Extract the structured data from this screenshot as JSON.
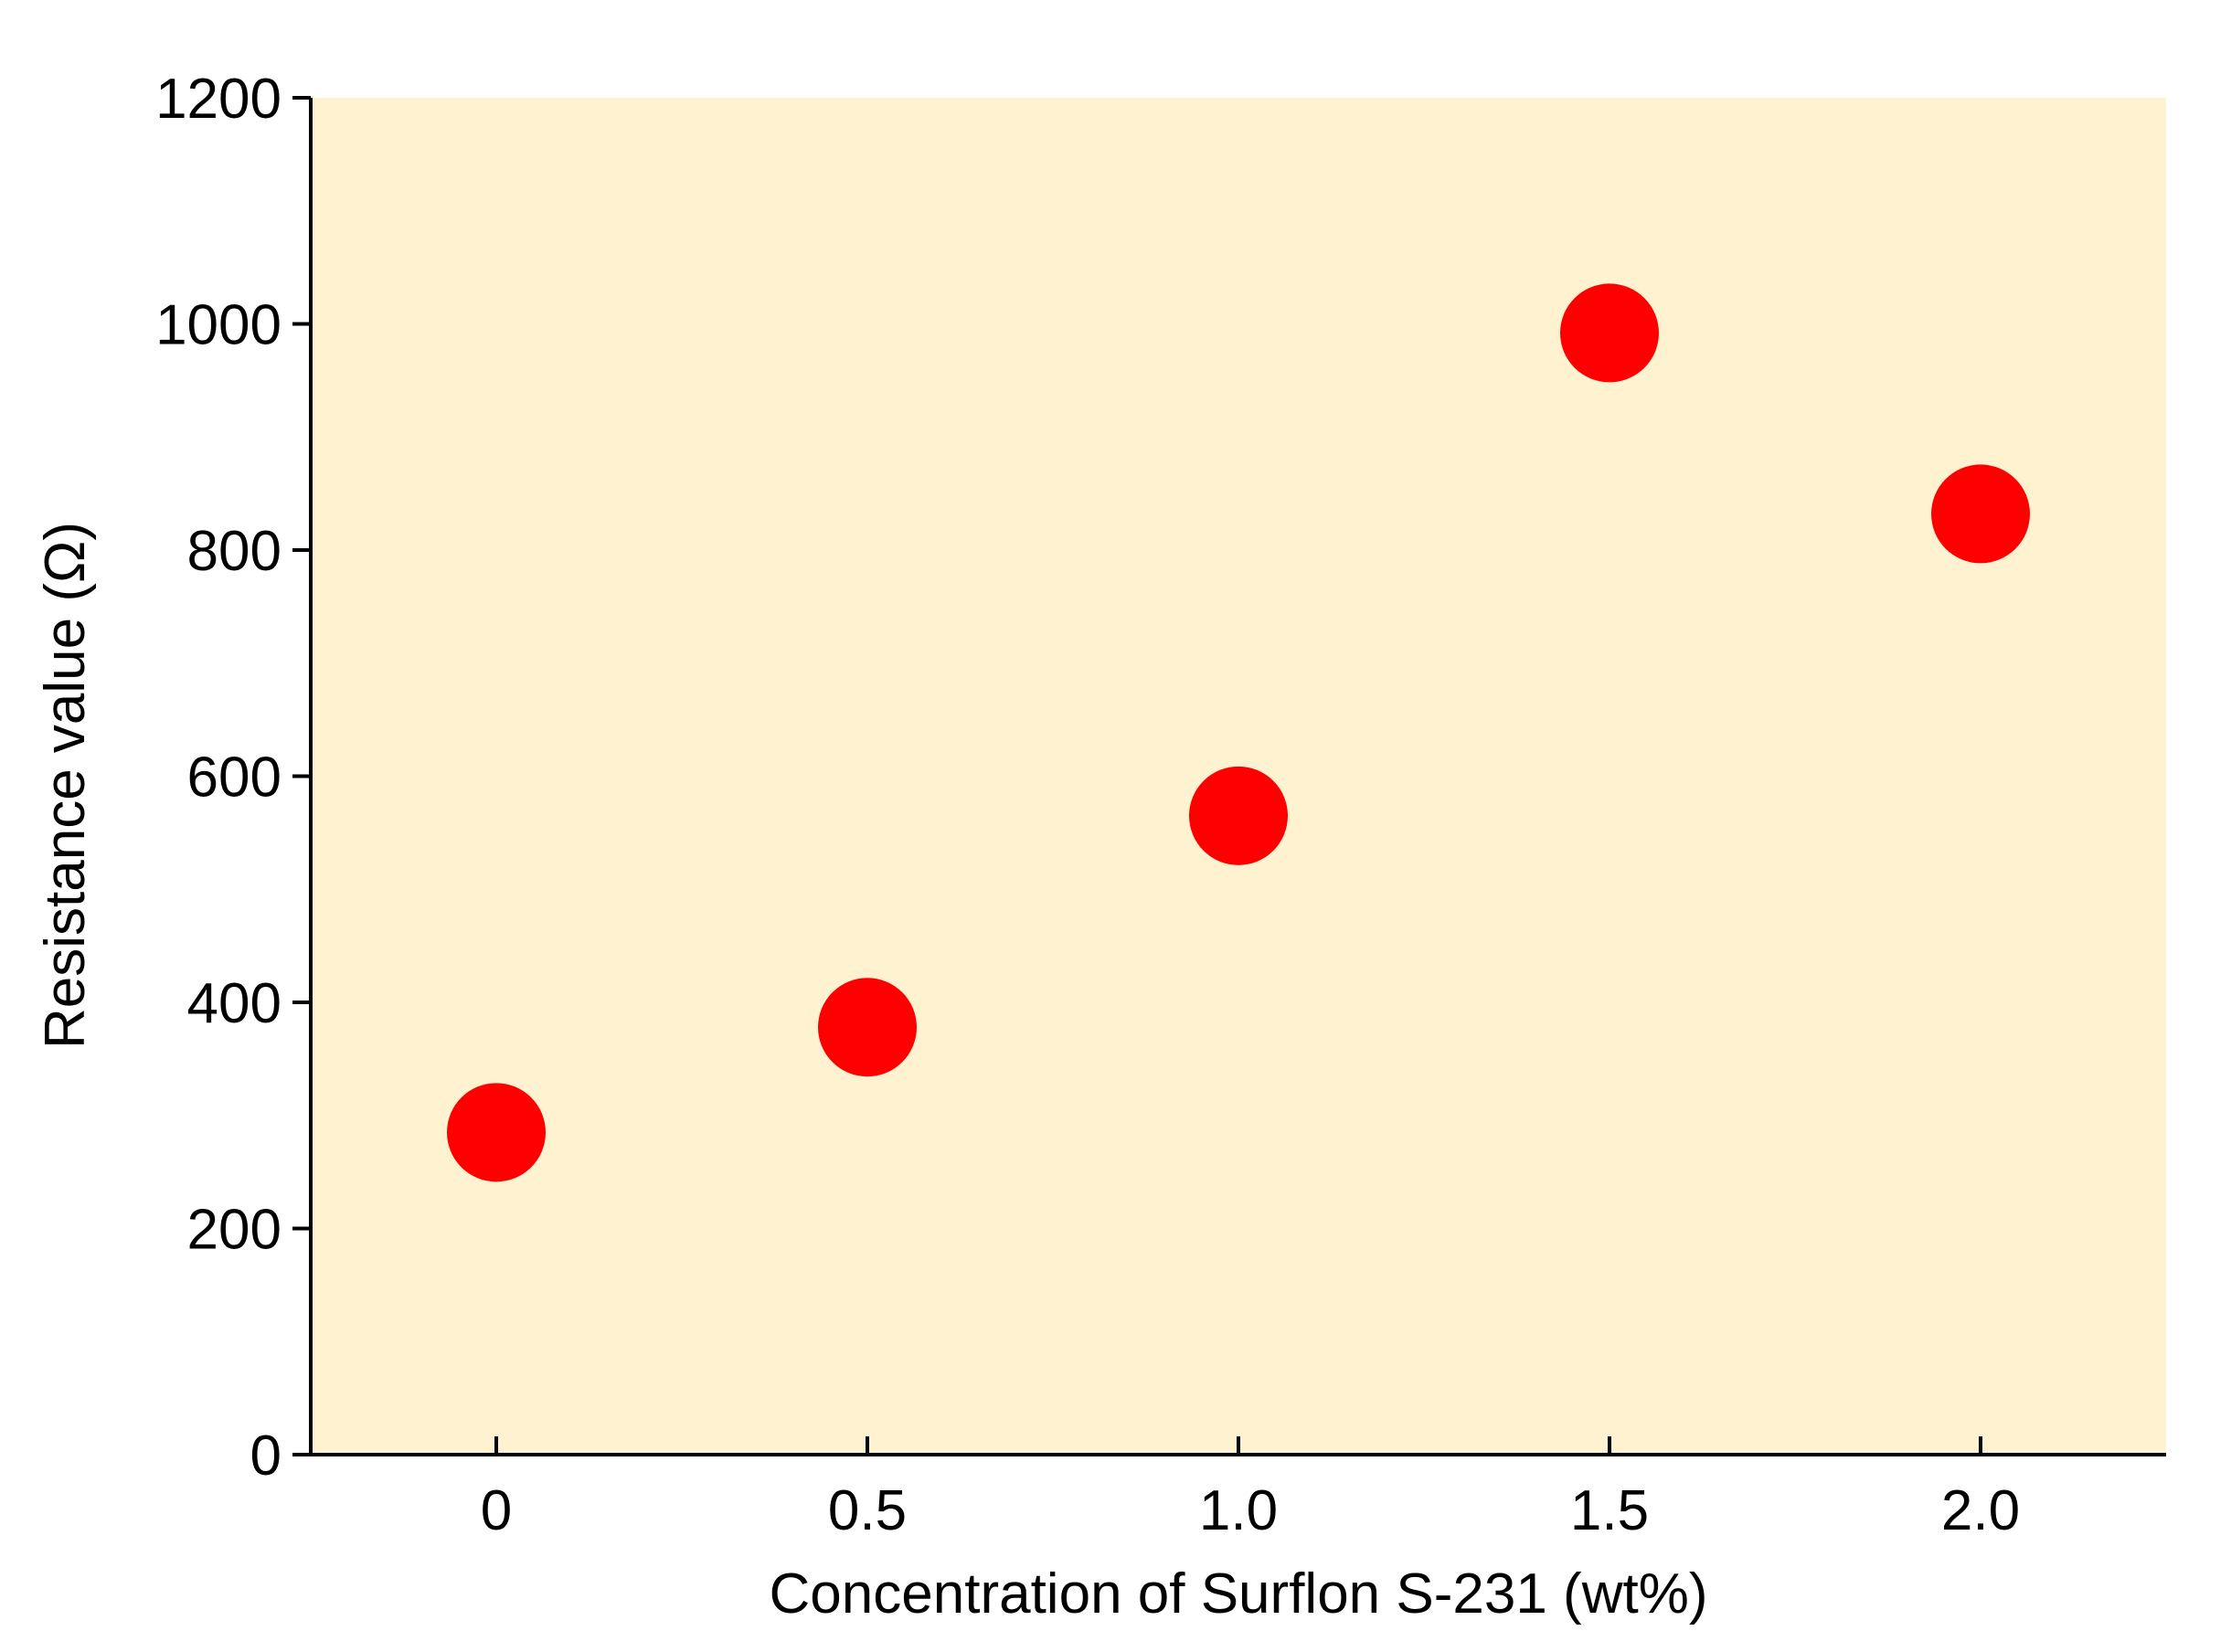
{
  "chart_data": {
    "type": "scatter",
    "title": "",
    "xlabel": "Concentration of Surflon S-231 (wt%)",
    "ylabel": "Resistance value (Ω)",
    "x": [
      0,
      0.5,
      1.0,
      1.5,
      2.0
    ],
    "y": [
      285,
      378,
      565,
      992,
      832
    ],
    "xlim": [
      -0.25,
      2.25
    ],
    "ylim": [
      0,
      1200
    ],
    "x_ticks": [
      0,
      0.5,
      1.0,
      1.5,
      2.0
    ],
    "x_tick_labels": [
      "0",
      "0.5",
      "1.0",
      "1.5",
      "2.0"
    ],
    "y_ticks": [
      0,
      200,
      400,
      600,
      800,
      1000,
      1200
    ],
    "y_tick_labels": [
      "0",
      "200",
      "400",
      "600",
      "800",
      "1000",
      "1200"
    ],
    "grid": false,
    "legend": "none",
    "colors": {
      "plot_background": "#fff2d0",
      "marker": "#ff0000",
      "axis": "#000000"
    }
  }
}
